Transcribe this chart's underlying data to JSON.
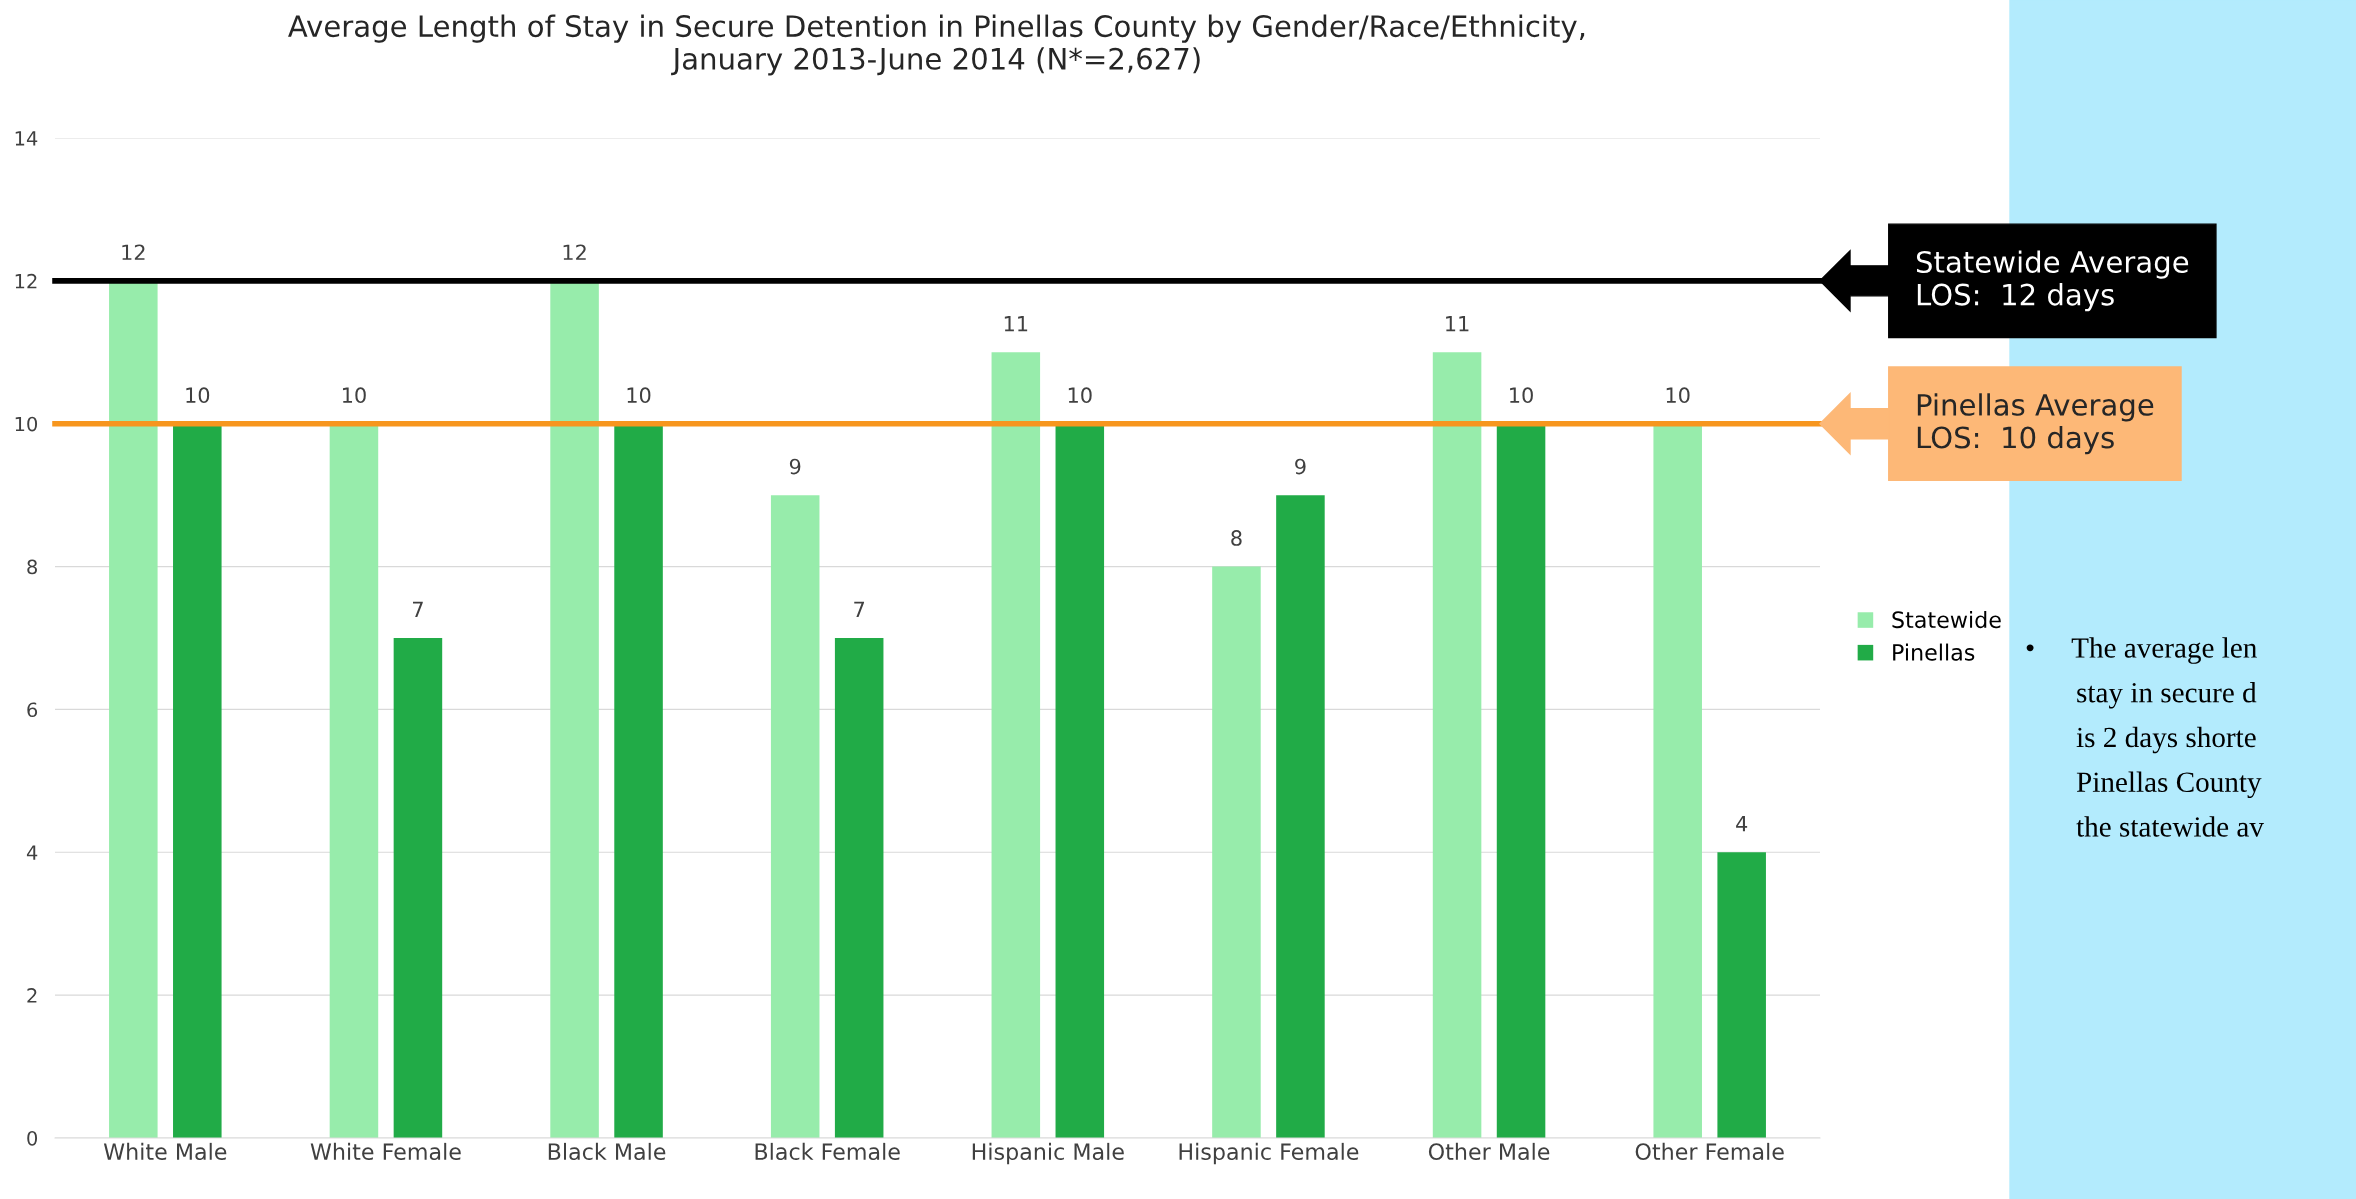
{
  "chart_data": {
    "type": "bar",
    "title": "Average Length of Stay in Secure Detention in Pinellas County by Gender/Race/Ethnicity,\nJanuary 2013-June 2014 (N*=2,627)",
    "categories": [
      "White Male",
      "White Female",
      "Black Male",
      "Black Female",
      "Hispanic Male",
      "Hispanic Female",
      "Other Male",
      "Other Female"
    ],
    "series": [
      {
        "name": "Statewide",
        "color": "#97ecab",
        "values": [
          12,
          10,
          12,
          9,
          11,
          8,
          11,
          10
        ]
      },
      {
        "name": "Pinellas",
        "color": "#21ab47",
        "values": [
          10,
          7,
          10,
          7,
          10,
          9,
          10,
          4
        ]
      }
    ],
    "ylim": [
      0,
      14
    ],
    "yticks": [
      0,
      2,
      4,
      6,
      8,
      10,
      12,
      14
    ],
    "grid": "y",
    "legend": "right",
    "data_labels": true,
    "ref_lines": [
      {
        "axis": "y",
        "value": 12,
        "label": "Statewide Average\nLOS:  12 days",
        "color": "#000000"
      },
      {
        "axis": "y",
        "value": 10,
        "label": "Pinellas Average\nLOS:  10 days",
        "color": "#f7961e"
      }
    ],
    "annotations": [
      "•     The average len\n       stay in secure d\n       is 2 days shorte\n       Pinellas County\n       the statewide av"
    ]
  }
}
